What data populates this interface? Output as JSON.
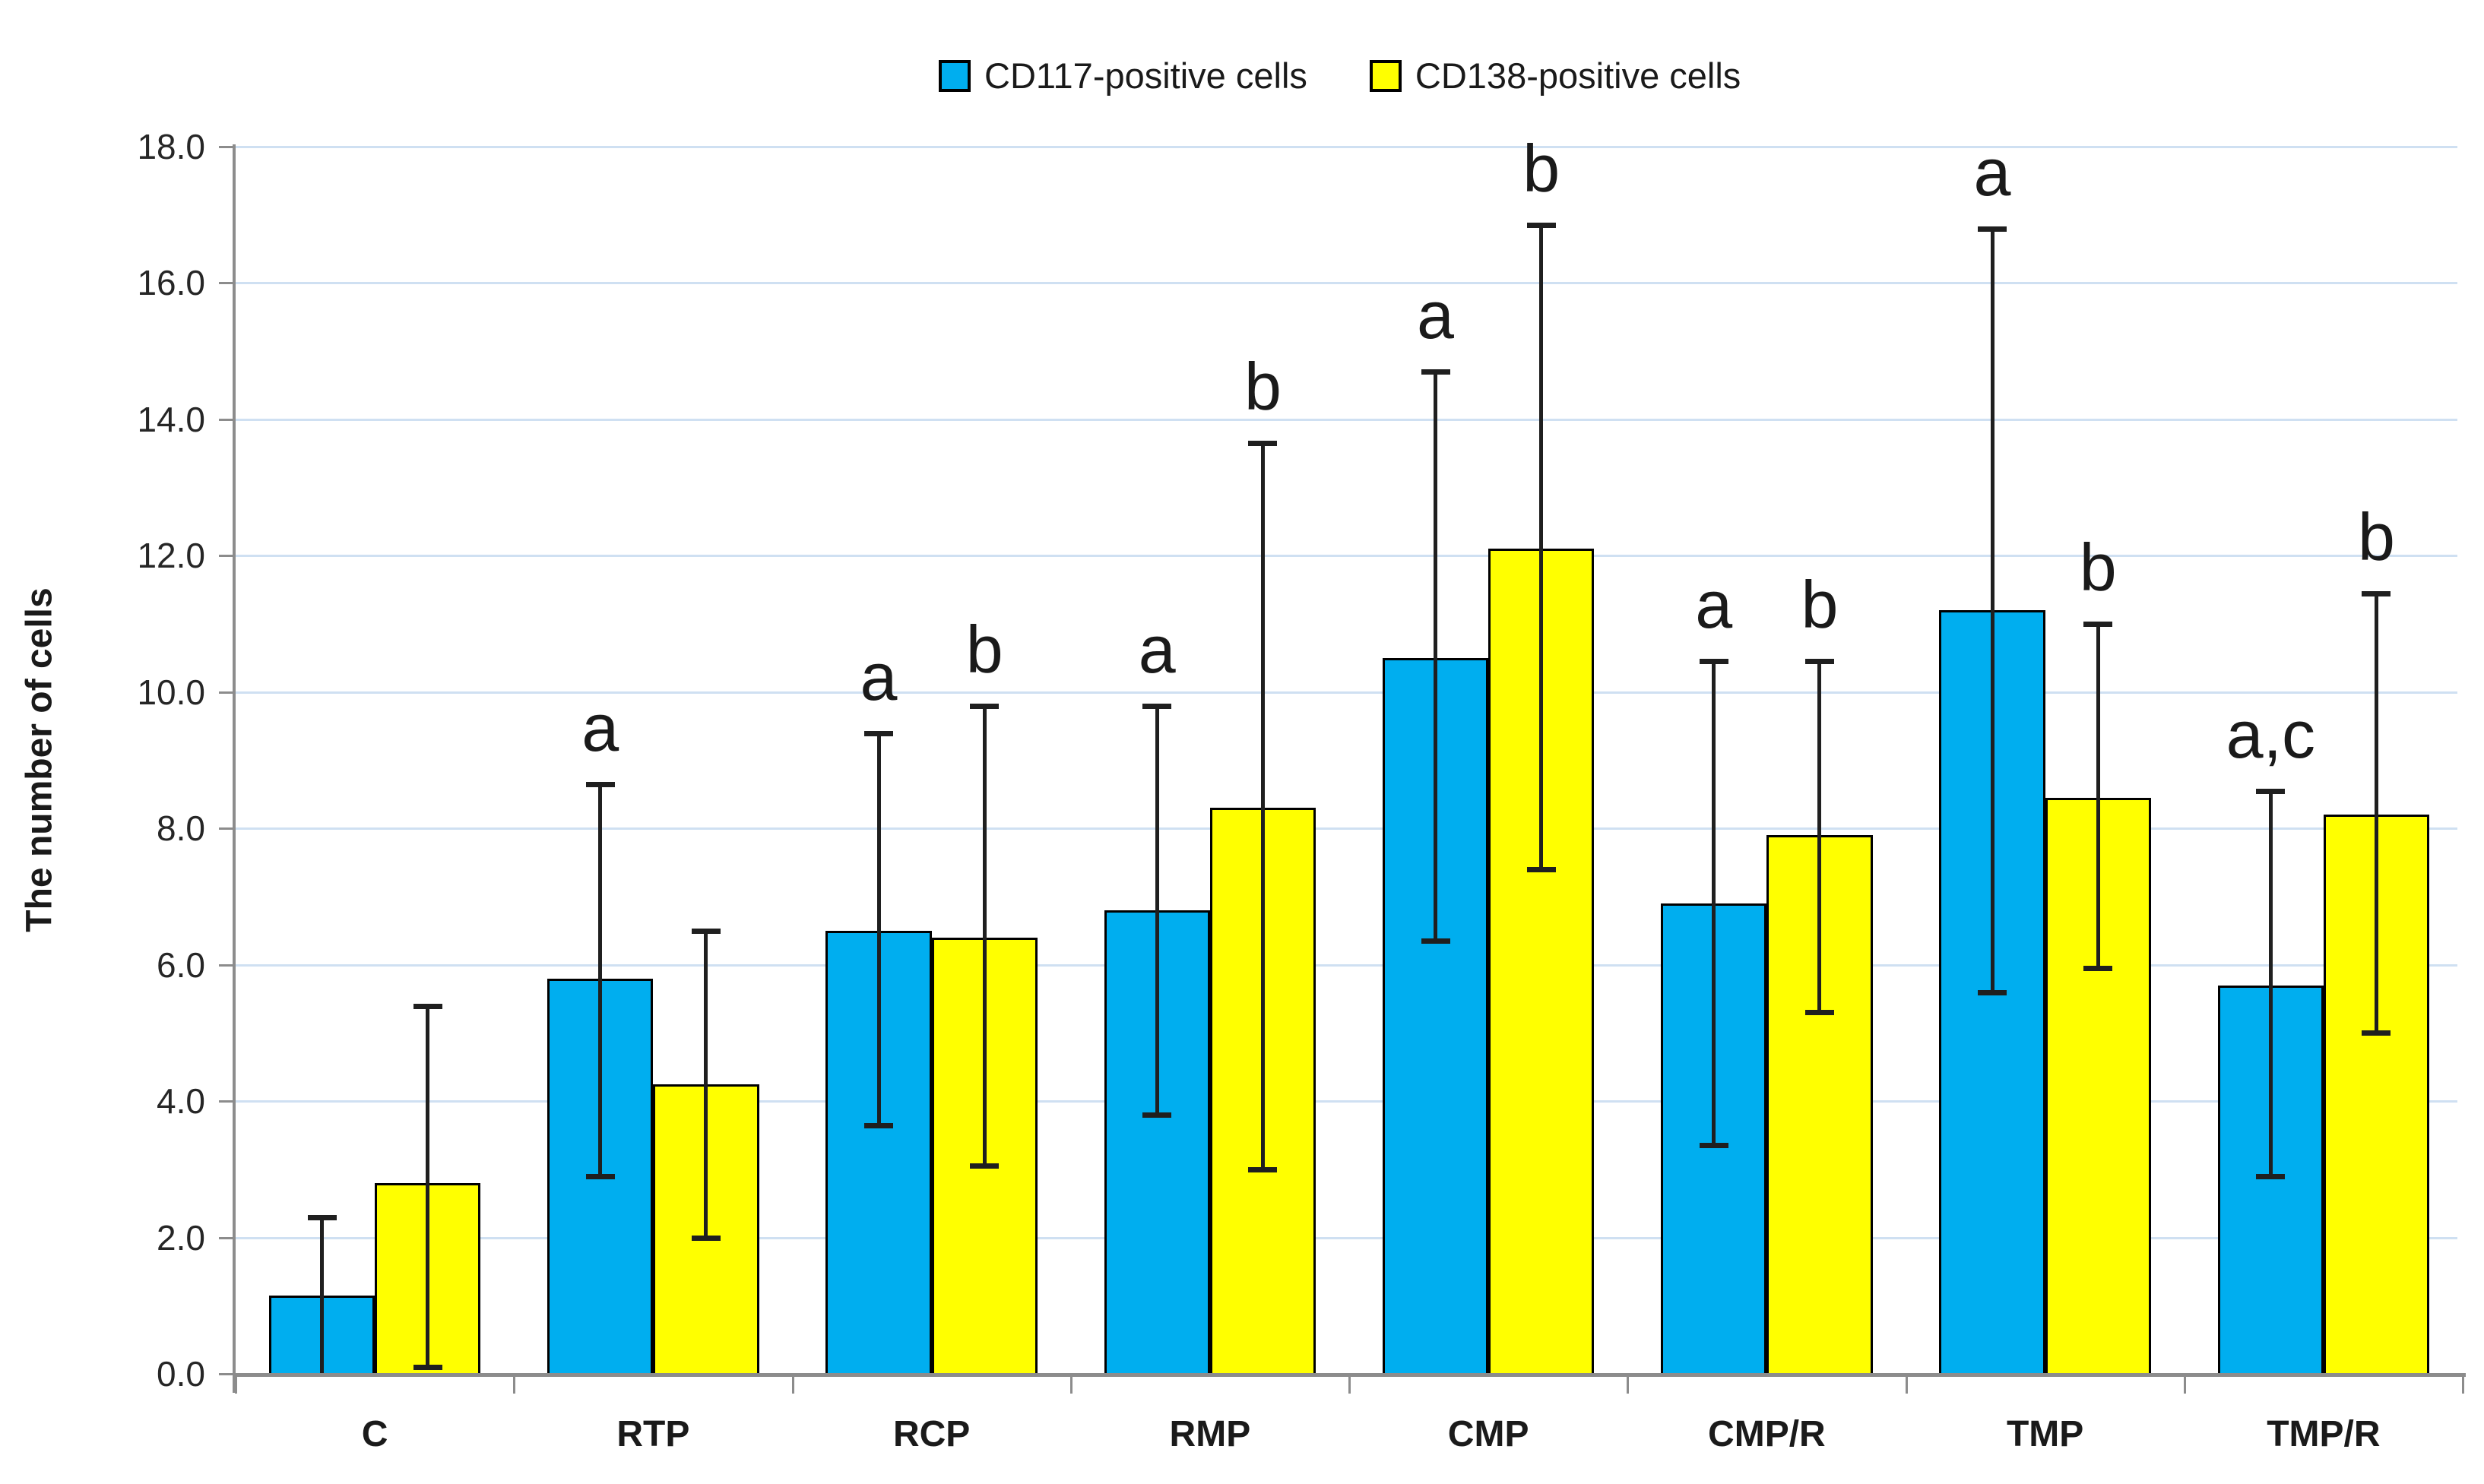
{
  "legend": {
    "items": [
      {
        "label": "CD117-positive cells",
        "color": "#00AEEF"
      },
      {
        "label": "CD138-positive cells",
        "color": "#FFFF00"
      }
    ]
  },
  "y_axis": {
    "title": "The number of cells",
    "min": 0,
    "max": 18,
    "step": 2,
    "tick_labels": [
      "0.0",
      "2.0",
      "4.0",
      "6.0",
      "8.0",
      "10.0",
      "12.0",
      "14.0",
      "16.0",
      "18.0"
    ]
  },
  "x_axis": {
    "categories": [
      "C",
      "RTP",
      "RCP",
      "RMP",
      "CMP",
      "CMP/R",
      "TMP",
      "TMP/R"
    ]
  },
  "chart_data": {
    "type": "bar",
    "title": "",
    "xlabel": "",
    "ylabel": "The number of cells",
    "ylim": [
      0,
      18
    ],
    "grid": true,
    "legend_position": "top",
    "categories": [
      "C",
      "RTP",
      "RCP",
      "RMP",
      "CMP",
      "CMP/R",
      "TMP",
      "TMP/R"
    ],
    "series": [
      {
        "name": "CD117-positive cells",
        "color": "#00AEEF",
        "values": [
          1.15,
          5.8,
          6.5,
          6.8,
          10.5,
          6.9,
          11.2,
          5.7
        ],
        "error_low": [
          0.0,
          2.9,
          3.65,
          3.8,
          6.35,
          3.35,
          5.6,
          2.9
        ],
        "error_high": [
          2.3,
          8.65,
          9.4,
          9.8,
          14.7,
          10.45,
          16.8,
          8.55
        ],
        "letters": [
          "",
          "a",
          "a",
          "a",
          "a",
          "a",
          "a",
          "a,c"
        ]
      },
      {
        "name": "CD138-positive cells",
        "color": "#FFFF00",
        "values": [
          2.8,
          4.25,
          6.4,
          8.3,
          12.1,
          7.9,
          8.45,
          8.2
        ],
        "error_low": [
          0.1,
          2.0,
          3.05,
          3.0,
          7.4,
          5.3,
          5.95,
          5.0
        ],
        "error_high": [
          5.4,
          6.5,
          9.8,
          13.65,
          16.85,
          10.45,
          11.0,
          11.45
        ],
        "letters": [
          "",
          "",
          "b",
          "b",
          "b",
          "b",
          "b",
          "b"
        ]
      }
    ],
    "colors": {
      "gridline": "#cfe0f2",
      "axis": "#8c8c8c",
      "error_bar": "#1f1f1f",
      "bar_border": "#000000"
    }
  }
}
